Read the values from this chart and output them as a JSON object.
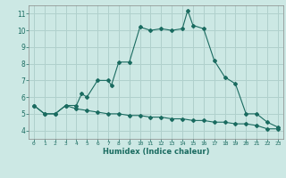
{
  "xlabel": "Humidex (Indice chaleur)",
  "bg_color": "#cce8e4",
  "grid_color": "#b0d0cc",
  "line_color": "#1a6b60",
  "xlim": [
    -0.5,
    23.5
  ],
  "ylim": [
    3.5,
    11.5
  ],
  "xticks": [
    0,
    1,
    2,
    3,
    4,
    5,
    6,
    7,
    8,
    9,
    10,
    11,
    12,
    13,
    14,
    15,
    16,
    17,
    18,
    19,
    20,
    21,
    22,
    23
  ],
  "yticks": [
    4,
    5,
    6,
    7,
    8,
    9,
    10,
    11
  ],
  "curve1_x": [
    0,
    1,
    2,
    3,
    4,
    4.5,
    5,
    6,
    7,
    7.3,
    8,
    9,
    10,
    11,
    12,
    13,
    14,
    14.5,
    15,
    16,
    17,
    18,
    19,
    20,
    21,
    22,
    23
  ],
  "curve1_y": [
    5.5,
    5.0,
    5.0,
    5.5,
    5.5,
    6.2,
    6.0,
    7.0,
    7.0,
    6.7,
    8.1,
    8.1,
    10.2,
    10.0,
    10.1,
    10.0,
    10.1,
    11.2,
    10.3,
    10.1,
    8.2,
    7.2,
    6.8,
    5.0,
    5.0,
    4.5,
    4.2
  ],
  "curve2_x": [
    0,
    1,
    2,
    3,
    4,
    5,
    6,
    7,
    8,
    9,
    10,
    11,
    12,
    13,
    14,
    15,
    16,
    17,
    18,
    19,
    20,
    21,
    22,
    23
  ],
  "curve2_y": [
    5.5,
    5.0,
    5.0,
    5.5,
    5.3,
    5.2,
    5.1,
    5.0,
    5.0,
    4.9,
    4.9,
    4.8,
    4.8,
    4.7,
    4.7,
    4.6,
    4.6,
    4.5,
    4.5,
    4.4,
    4.4,
    4.3,
    4.1,
    4.1
  ]
}
